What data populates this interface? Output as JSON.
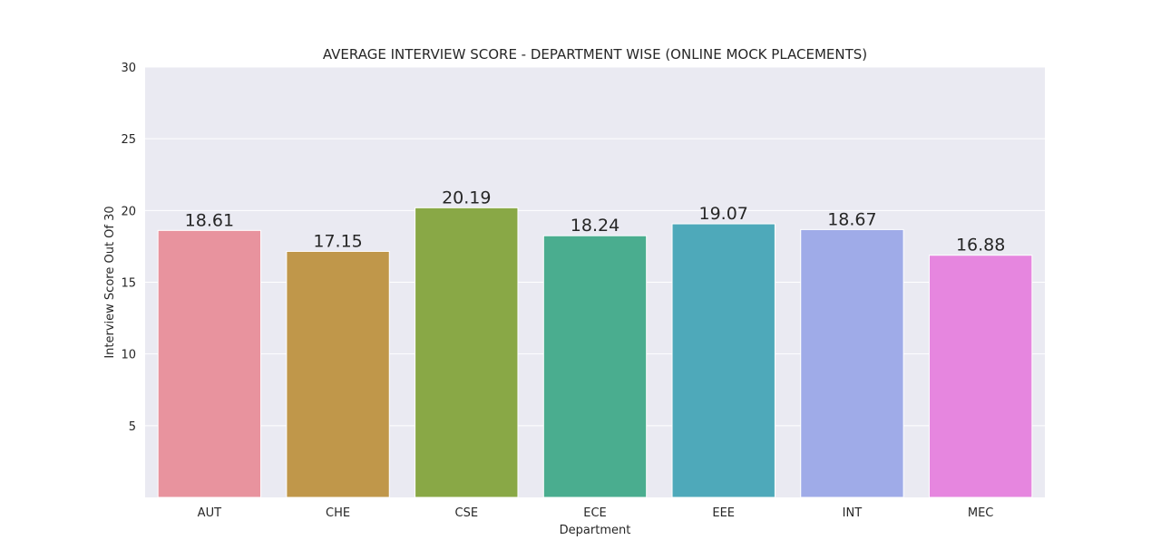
{
  "chart_data": {
    "type": "bar",
    "title": "AVERAGE INTERVIEW SCORE - DEPARTMENT WISE (ONLINE MOCK PLACEMENTS)",
    "xlabel": "Department",
    "ylabel": "Interview Score Out Of 30",
    "categories": [
      "AUT",
      "CHE",
      "CSE",
      "ECE",
      "EEE",
      "INT",
      "MEC"
    ],
    "values": [
      18.61,
      17.15,
      20.19,
      18.24,
      19.07,
      18.67,
      16.88
    ],
    "data_labels": [
      "18.61",
      "17.15",
      "20.19",
      "18.24",
      "19.07",
      "18.67",
      "16.88"
    ],
    "colors": [
      "#e8939e",
      "#c0974a",
      "#89a846",
      "#4aad8f",
      "#4ea9ba",
      "#9fabe8",
      "#e686df"
    ],
    "ylim": [
      0,
      30
    ],
    "yticks": [
      5,
      10,
      15,
      20,
      25,
      30
    ],
    "grid": true,
    "legend": "none",
    "background_color": "#eaeaf2",
    "grid_color": "#ffffff"
  }
}
